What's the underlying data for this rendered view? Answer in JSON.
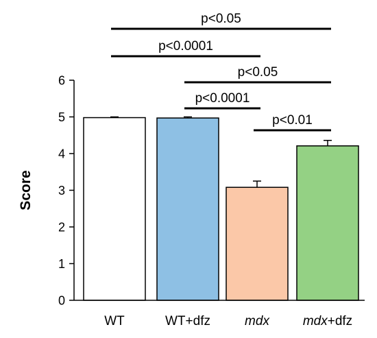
{
  "chart_data": {
    "type": "bar",
    "title": "",
    "xlabel": "",
    "ylabel": "Score",
    "ylim": [
      0,
      6
    ],
    "yticks": [
      0,
      1,
      2,
      3,
      4,
      5,
      6
    ],
    "grid": false,
    "legend": "none",
    "categories": [
      {
        "parts": [
          {
            "text": "WT",
            "italic": false
          }
        ]
      },
      {
        "parts": [
          {
            "text": "WT+dfz",
            "italic": false
          }
        ]
      },
      {
        "parts": [
          {
            "text": "mdx",
            "italic": true
          }
        ]
      },
      {
        "parts": [
          {
            "text": "mdx",
            "italic": true
          },
          {
            "text": "+dfz",
            "italic": false
          }
        ]
      }
    ],
    "values": [
      4.98,
      4.97,
      3.08,
      4.21
    ],
    "errors": [
      0.02,
      0.03,
      0.17,
      0.15
    ],
    "colors": [
      "#ffffff",
      "#8ec0e4",
      "#fbc8a8",
      "#94d184"
    ],
    "edge_color": "#000000",
    "significance": [
      {
        "from": 0,
        "to": 3,
        "label": "p<0.05"
      },
      {
        "from": 0,
        "to": 2,
        "label": "p<0.0001"
      },
      {
        "from": 1,
        "to": 3,
        "label": "p<0.05"
      },
      {
        "from": 1,
        "to": 2,
        "label": "p<0.0001"
      },
      {
        "from": 2,
        "to": 3,
        "label": "p<0.01"
      }
    ]
  }
}
